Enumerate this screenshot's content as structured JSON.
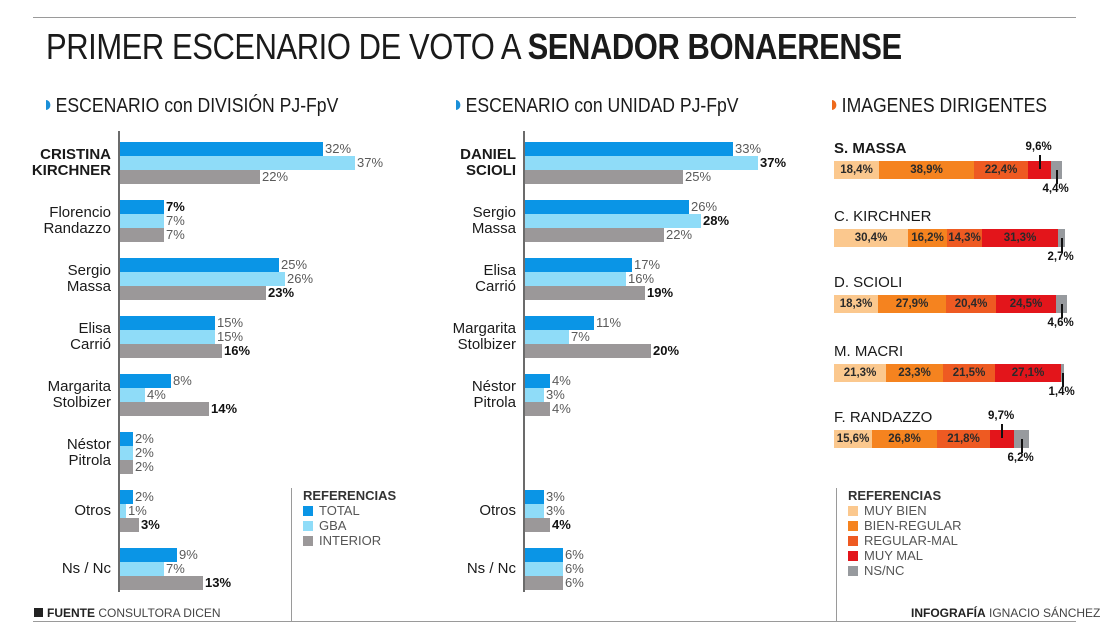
{
  "title": {
    "regular": "PRIMER ESCENARIO DE VOTO A ",
    "bold": "SENADOR BONAERENSE"
  },
  "colors": {
    "total": "#0a95e6",
    "gba": "#8fdcf8",
    "interior": "#9b9899",
    "marker_blue": "#1a8fd8",
    "marker_orange": "#ee6a1c",
    "muy_bien": "#fbc88e",
    "bien_regular": "#f5831f",
    "regular_mal": "#ee5a22",
    "muy_mal": "#e3151b",
    "ns_nc": "#979a9e"
  },
  "chart_data": [
    {
      "type": "bar",
      "orientation": "horizontal",
      "title": "ESCENARIO con DIVISIÓN PJ-FpV",
      "unit": "%",
      "categories": [
        "CRISTINA\nKIRCHNER",
        "Florencio\nRandazzo",
        "Sergio\nMassa",
        "Elisa\nCarrió",
        "Margarita\nStolbizer",
        "Néstor\nPitrola",
        "Otros",
        "Ns / Nc"
      ],
      "highlight_category": 0,
      "series": [
        {
          "name": "TOTAL",
          "values": [
            32,
            7,
            25,
            15,
            8,
            2,
            2,
            9
          ]
        },
        {
          "name": "GBA",
          "values": [
            37,
            7,
            26,
            15,
            4,
            2,
            1,
            7
          ]
        },
        {
          "name": "INTERIOR",
          "values": [
            22,
            7,
            23,
            16,
            14,
            2,
            3,
            13
          ]
        }
      ],
      "bold_labels": [
        [
          1,
          0
        ],
        [
          2,
          2
        ],
        [
          3,
          2
        ],
        [
          4,
          2
        ],
        [
          6,
          2
        ],
        [
          7,
          2
        ]
      ],
      "legend": {
        "title": "REFERENCIAS",
        "entries": [
          "TOTAL",
          "GBA",
          "INTERIOR"
        ],
        "position": "bottom-right"
      }
    },
    {
      "type": "bar",
      "orientation": "horizontal",
      "title": "ESCENARIO con UNIDAD PJ-FpV",
      "unit": "%",
      "categories": [
        "DANIEL\nSCIOLI",
        "Sergio\nMassa",
        "Elisa\nCarrió",
        "Margarita\nStolbizer",
        "Néstor\nPitrola",
        "Otros",
        "Ns / Nc"
      ],
      "highlight_category": 0,
      "series": [
        {
          "name": "TOTAL",
          "values": [
            33,
            26,
            17,
            11,
            4,
            3,
            6
          ]
        },
        {
          "name": "GBA",
          "values": [
            37,
            28,
            16,
            7,
            3,
            3,
            6
          ]
        },
        {
          "name": "INTERIOR",
          "values": [
            25,
            22,
            19,
            20,
            4,
            4,
            6
          ]
        }
      ],
      "bold_labels": [
        [
          0,
          1
        ],
        [
          1,
          1
        ],
        [
          2,
          2
        ],
        [
          3,
          2
        ],
        [
          5,
          2
        ]
      ]
    },
    {
      "type": "bar",
      "orientation": "horizontal-stacked",
      "title": "IMAGENES DIRIGENTES",
      "unit": "%",
      "categories": [
        "S. MASSA",
        "C. KIRCHNER",
        "D. SCIOLI",
        "M. MACRI",
        "F. RANDAZZO"
      ],
      "highlight_category": 0,
      "series": [
        {
          "name": "MUY BIEN",
          "values": [
            18.4,
            30.4,
            18.3,
            21.3,
            15.6
          ],
          "labels": [
            "18,4%",
            "30,4%",
            "18,3%",
            "21,3%",
            "15,6%"
          ]
        },
        {
          "name": "BIEN-REGULAR",
          "values": [
            38.9,
            16.2,
            27.9,
            23.3,
            26.8
          ],
          "labels": [
            "38,9%",
            "16,2%",
            "27,9%",
            "23,3%",
            "26,8%"
          ]
        },
        {
          "name": "REGULAR-MAL",
          "values": [
            22.4,
            14.3,
            20.4,
            21.5,
            21.8
          ],
          "labels": [
            "22,4%",
            "14,3%",
            "20,4%",
            "21,5%",
            "21,8%"
          ]
        },
        {
          "name": "MUY MAL",
          "values": [
            9.6,
            31.3,
            24.5,
            27.1,
            9.7
          ],
          "labels": [
            "9,6%",
            "31,3%",
            "24,5%",
            "27,1%",
            "9,7%"
          ]
        },
        {
          "name": "NS/NC",
          "values": [
            4.4,
            2.7,
            4.6,
            1.4,
            6.2
          ],
          "labels": [
            "4,4%",
            "2,7%",
            "4,6%",
            "1,4%",
            "6,2%"
          ]
        }
      ],
      "legend": {
        "title": "REFERENCIAS",
        "entries": [
          "MUY BIEN",
          "BIEN-REGULAR",
          "REGULAR-MAL",
          "MUY MAL",
          "NS/NC"
        ],
        "position": "bottom"
      }
    }
  ],
  "footer": {
    "source_label": "FUENTE",
    "source_value": "CONSULTORA DICEN",
    "credit_label": "INFOGRAFÍA",
    "credit_value": "IGNACIO SÁNCHEZ"
  }
}
